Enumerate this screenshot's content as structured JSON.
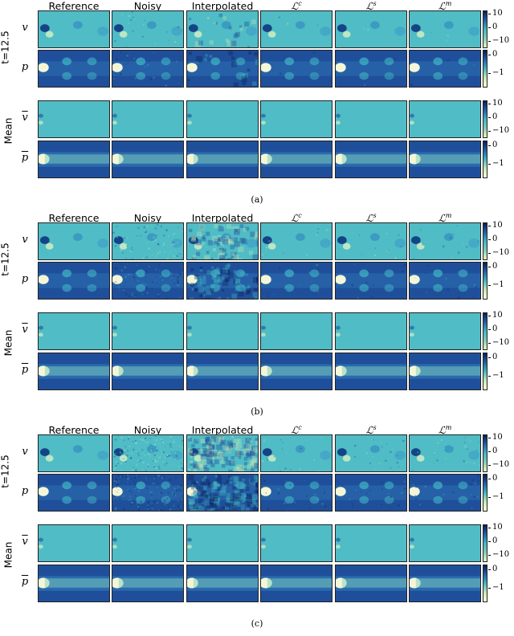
{
  "columns": [
    "Reference",
    "Noisy",
    "Interpolated",
    "ℒ",
    "ℒ",
    "ℒ"
  ],
  "column_sup": [
    "",
    "",
    "",
    "c",
    "s",
    "m"
  ],
  "rows": {
    "instant_label": "t=12.5",
    "mean_label": "Mean",
    "v": "v",
    "p": "p",
    "v_mean": "v",
    "p_mean": "p"
  },
  "colorbar_v_ticks": [
    "10",
    "0",
    "−10"
  ],
  "colorbar_p_ticks": [
    "0",
    "−1"
  ],
  "panels": [
    {
      "caption": "(a)",
      "noise": "low"
    },
    {
      "caption": "(b)",
      "noise": "medium"
    },
    {
      "caption": "(c)",
      "noise": "high"
    }
  ],
  "colors": {
    "field_background": "#41b6c4",
    "low_pressure": "#081d58",
    "high_pressure": "#ffffd9",
    "frame": "#222222"
  }
}
